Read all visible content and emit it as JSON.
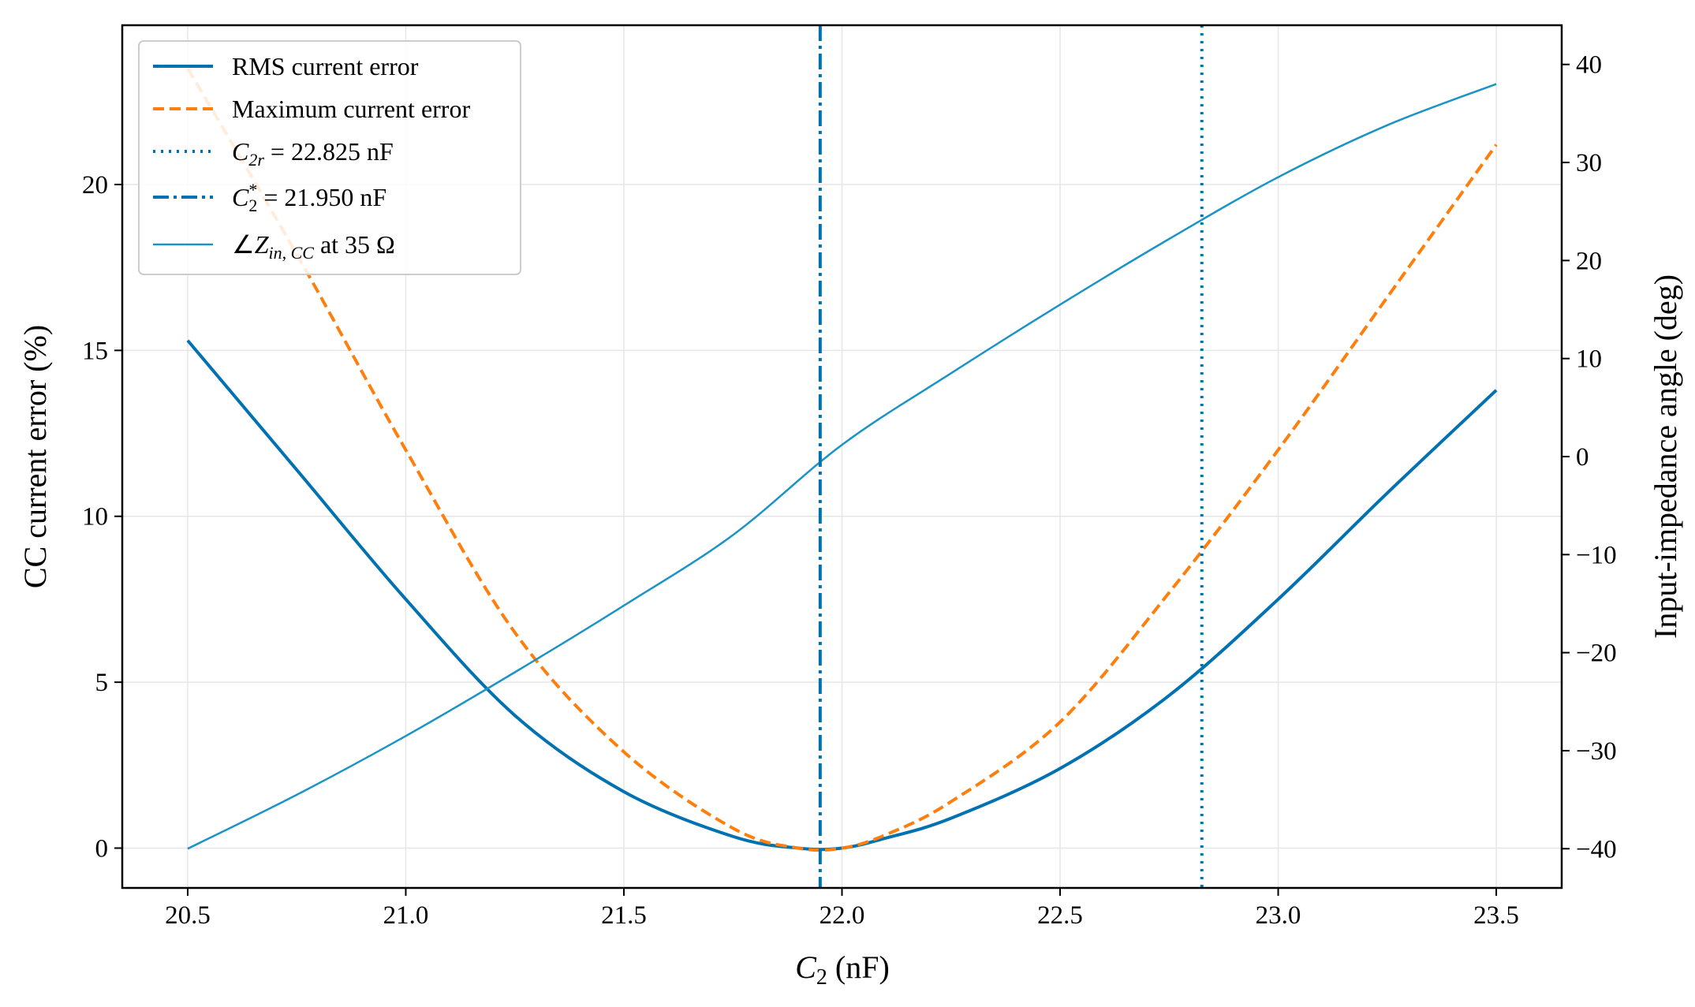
{
  "chart_data": {
    "type": "line",
    "xlabel": "C₂ (nF)",
    "ylabel": "CC current error (%)",
    "y2label": "Input-impedance angle (deg)",
    "xlim": [
      20.35,
      23.65
    ],
    "ylim": [
      -1.2,
      24.8
    ],
    "y2lim": [
      -44,
      44
    ],
    "xticks": [
      "20.5",
      "21.0",
      "21.5",
      "22.0",
      "22.5",
      "23.0",
      "23.5"
    ],
    "yticks": [
      "0",
      "5",
      "10",
      "15",
      "20"
    ],
    "y2ticks": [
      "−40",
      "−30",
      "−20",
      "−10",
      "0",
      "10",
      "20",
      "30",
      "40"
    ],
    "grid": true,
    "legend_position": "top-left",
    "series": [
      {
        "name": "RMS current error",
        "axis": "left",
        "color": "#0072B2",
        "style": "solid",
        "x": [
          20.5,
          20.75,
          21.0,
          21.25,
          21.5,
          21.75,
          21.9,
          22.0,
          22.1,
          22.25,
          22.5,
          22.75,
          23.0,
          23.25,
          23.5
        ],
        "y": [
          15.3,
          11.4,
          7.5,
          4.0,
          1.7,
          0.35,
          0.0,
          0.0,
          0.3,
          0.9,
          2.4,
          4.6,
          7.5,
          10.7,
          13.8
        ]
      },
      {
        "name": "Maximum current error",
        "axis": "left",
        "color": "#FF7F0E",
        "style": "dashed",
        "x": [
          20.5,
          20.75,
          21.0,
          21.25,
          21.5,
          21.75,
          21.9,
          22.0,
          22.1,
          22.25,
          22.5,
          22.75,
          23.0,
          23.25,
          23.5
        ],
        "y": [
          23.5,
          17.9,
          12.0,
          6.5,
          2.9,
          0.6,
          0.0,
          0.0,
          0.4,
          1.4,
          3.8,
          7.7,
          12.0,
          16.6,
          21.2
        ]
      },
      {
        "name": "∠Z_in,CC at 35 Ω",
        "axis": "right",
        "color": "#1A93C7",
        "style": "solid-thin",
        "x": [
          20.5,
          20.75,
          21.0,
          21.25,
          21.5,
          21.75,
          22.0,
          22.25,
          22.5,
          22.75,
          23.0,
          23.25,
          23.5
        ],
        "y": [
          -40.0,
          -34.5,
          -28.5,
          -22.0,
          -15.2,
          -8.0,
          1.2,
          8.5,
          15.5,
          22.2,
          28.5,
          33.8,
          38.0
        ]
      }
    ],
    "vlines": [
      {
        "name": "C₂ᵣ = 22.825 nF",
        "x": 22.825,
        "color": "#0072B2",
        "style": "dotted"
      },
      {
        "name": "C₂* = 21.950 nF",
        "x": 21.95,
        "color": "#0072B2",
        "style": "dashdot"
      }
    ],
    "legend": {
      "items": [
        {
          "kind": "rms",
          "label": "RMS current error"
        },
        {
          "kind": "max",
          "label": "Maximum current error"
        },
        {
          "kind": "c2r",
          "main": "C",
          "sub": "2r",
          "value": " = 22.825 nF"
        },
        {
          "kind": "c2star",
          "main": "C",
          "sub": "2",
          "sup": "*",
          "value": " = 21.950 nF"
        },
        {
          "kind": "angle",
          "angle": "∠",
          "main": "Z",
          "sub": "in, CC",
          "rest": " at 35 Ω"
        }
      ]
    },
    "xlabel_parts": {
      "main": "C",
      "sub": "2",
      "rest": " (nF)"
    }
  }
}
